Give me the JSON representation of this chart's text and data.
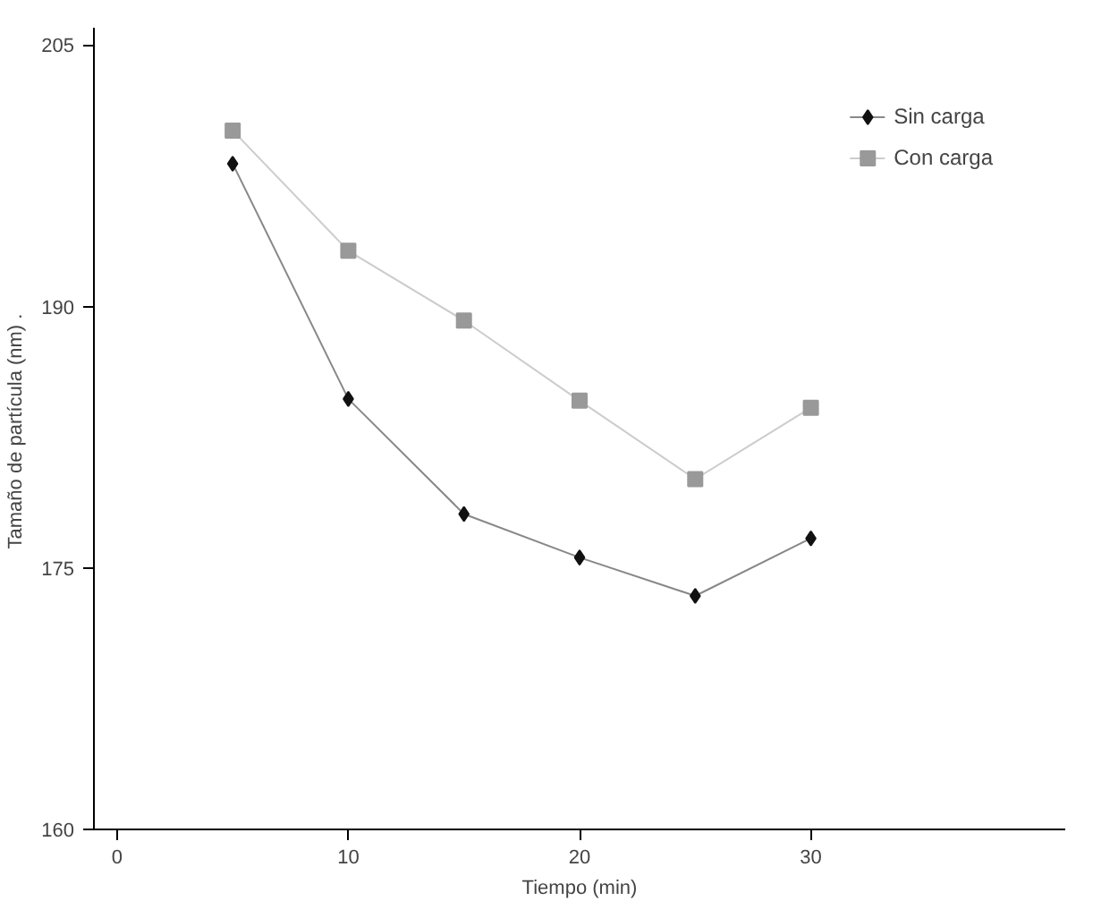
{
  "chart_data": {
    "type": "line",
    "xlabel": "Tiempo (min)",
    "ylabel": "Tamaño  de partícula (nm) .",
    "x": [
      5,
      10,
      15,
      20,
      25,
      30
    ],
    "series": [
      {
        "name": "Sin carga",
        "color": "#111111",
        "marker": "diamond",
        "values": [
          198.2,
          184.7,
          178.1,
          175.6,
          173.4,
          176.7
        ]
      },
      {
        "name": "Con carga",
        "color": "#999999",
        "marker": "square",
        "values": [
          200.1,
          193.2,
          189.2,
          184.6,
          180.1,
          184.2
        ]
      }
    ],
    "xlim": [
      -1,
      41
    ],
    "xticks": [
      0,
      10,
      20,
      30
    ],
    "ylim": [
      160,
      206
    ],
    "yticks": [
      160,
      175,
      190,
      205
    ],
    "grid": false,
    "legend": "top right"
  }
}
